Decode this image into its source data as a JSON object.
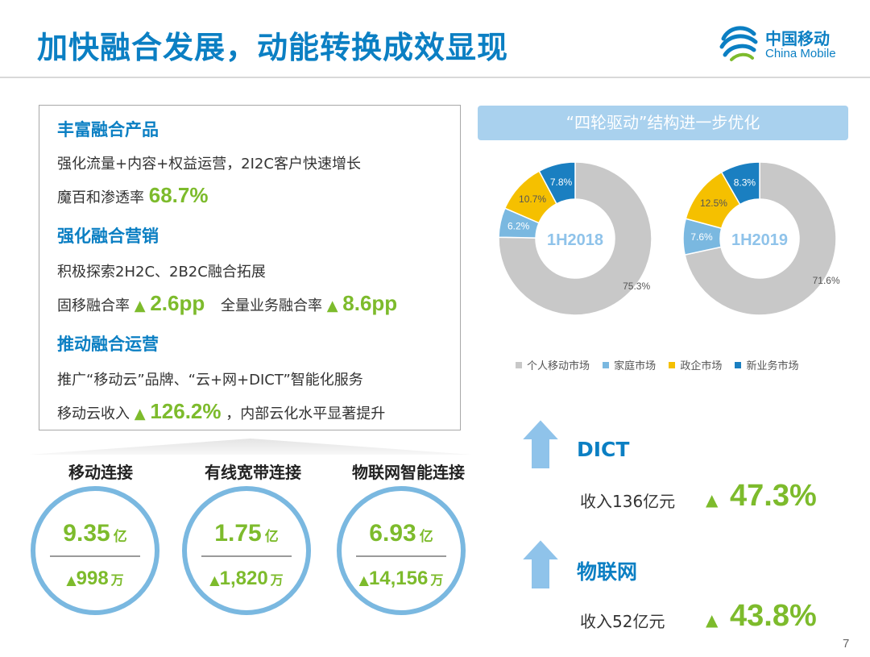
{
  "title": "加快融合发展，动能转换成效显现",
  "logo": {
    "cn": "中国移动",
    "en": "China Mobile"
  },
  "info": {
    "s1_head": "丰富融合产品",
    "s1_line1": "强化流量+内容+权益运营，2I2C客户快速增长",
    "s1_line2_label": "魔百和渗透率",
    "s1_line2_value": "68.7%",
    "s2_head": "强化融合营销",
    "s2_line1": "积极探索2H2C、2B2C融合拓展",
    "s2_a_label": "固移融合率",
    "s2_a_value": "2.6pp",
    "s2_b_label": "全量业务融合率",
    "s2_b_value": "8.6pp",
    "s3_head": "推动融合运营",
    "s3_line1": "推广“移动云”品牌、“云+网+DICT”智能化服务",
    "s3_line2_label": "移动云收入",
    "s3_line2_value": "126.2%",
    "s3_line2_suffix": "，内部云化水平显著提升",
    "up_arrow": "▲"
  },
  "connections": [
    {
      "label": "移动连接",
      "value": "9.35",
      "unit": "亿",
      "increase": "998",
      "inc_unit": "万"
    },
    {
      "label": "有线宽带连接",
      "value": "1.75",
      "unit": "亿",
      "increase": "1,820",
      "inc_unit": "万"
    },
    {
      "label": "物联网智能连接",
      "value": "6.93",
      "unit": "亿",
      "increase": "14,156",
      "inc_unit": "万"
    }
  ],
  "banner": "“四轮驱动”结构进一步优化",
  "chart_data": [
    {
      "type": "pie",
      "center_label": "1H2018",
      "categories": [
        "个人移动市场",
        "家庭市场",
        "政企市场",
        "新业务市场"
      ],
      "values": [
        75.3,
        6.2,
        10.7,
        7.8
      ],
      "labels": [
        "75.3%",
        "6.2%",
        "10.7%",
        "7.8%"
      ],
      "colors": [
        "#c8c8c8",
        "#7ab8e0",
        "#f5c000",
        "#1a7fc1"
      ],
      "legend": "bottom"
    },
    {
      "type": "pie",
      "center_label": "1H2019",
      "categories": [
        "个人移动市场",
        "家庭市场",
        "政企市场",
        "新业务市场"
      ],
      "values": [
        71.6,
        7.6,
        12.5,
        8.3
      ],
      "labels": [
        "71.6%",
        "7.6%",
        "12.5%",
        "8.3%"
      ],
      "colors": [
        "#c8c8c8",
        "#7ab8e0",
        "#f5c000",
        "#1a7fc1"
      ],
      "legend": "bottom"
    }
  ],
  "legend": [
    {
      "label": "个人移动市场",
      "color": "#c8c8c8"
    },
    {
      "label": "家庭市场",
      "color": "#7ab8e0"
    },
    {
      "label": "政企市场",
      "color": "#f5c000"
    },
    {
      "label": "新业务市场",
      "color": "#1a7fc1"
    }
  ],
  "metrics": [
    {
      "title": "DICT",
      "line": "收入136亿元",
      "pct": "47.3%"
    },
    {
      "title": "物联网",
      "line": "收入52亿元",
      "pct": "43.8%"
    }
  ],
  "page_number": "7",
  "colors": {
    "brand_blue": "#0b7fc3",
    "green": "#7dbb2c",
    "light_blue": "#7ab8e0",
    "grey": "#c8c8c8"
  }
}
